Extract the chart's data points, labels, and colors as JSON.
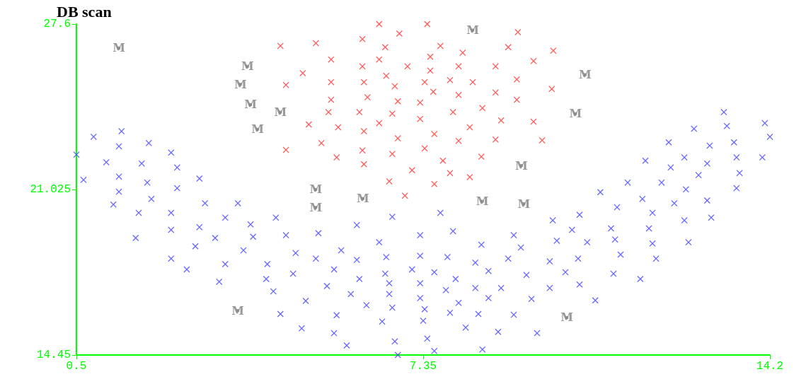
{
  "chart_data": {
    "type": "scatter",
    "title": "DB scan",
    "xlim": [
      0.5,
      14.2
    ],
    "xticks": [
      0.5,
      7.35,
      14.2
    ],
    "ylim": [
      14.45,
      27.6
    ],
    "yticks": [
      14.45,
      21.025,
      27.6
    ],
    "grid": false,
    "series": [
      {
        "color": "#4040ff",
        "marker": "cross",
        "x": [
          0.5,
          0.64,
          0.84,
          1.39,
          1.34,
          1.93,
          2.37,
          1.09,
          1.79,
          2.49,
          2.93,
          1.34,
          1.9,
          2.49,
          1.34,
          1.23,
          1.98,
          1.73,
          2.37,
          1.67,
          2.37,
          3.04,
          3.69,
          3.44,
          2.93,
          3.94,
          3.24,
          3.99,
          2.85,
          3.8,
          2.37,
          2.68,
          3.44,
          3.32,
          4.44,
          4.64,
          5.28,
          4.83,
          5.23,
          4.27,
          4.25,
          4.78,
          4.39,
          5.03,
          4.53,
          4.95,
          6.04,
          5.73,
          5.59,
          6.04,
          6.09,
          5.45,
          5.92,
          6.23,
          5.64,
          5.59,
          5.84,
          6.74,
          6.48,
          6.62,
          6.6,
          6.68,
          6.68,
          6.74,
          6.54,
          6.79,
          6.85,
          7.69,
          7.29,
          7.94,
          7.29,
          7.13,
          7.83,
          7.57,
          7.29,
          7.99,
          7.8,
          7.29,
          7.38,
          8.05,
          7.88,
          7.35,
          7.43,
          7.57,
          8.19,
          8.5,
          8.38,
          8.64,
          8.38,
          8.89,
          8.64,
          8.44,
          8.83,
          8.52,
          9.14,
          9.28,
          9.03,
          9.39,
          9.14,
          9.49,
          9.6,
          9.91,
          10.44,
          10.29,
          9.99,
          10.59,
          9.85,
          10.41,
          10.16,
          9.85,
          10.44,
          10.75,
          10.85,
          11.18,
          11.06,
          11.14,
          11.25,
          11.11,
          11.64,
          11.68,
          11.88,
          11.81,
          11.88,
          11.95,
          12.31,
          12.96,
          12.51,
          13.04,
          12.59,
          11.39,
          12.06,
          12.54,
          13.54,
          11.74,
          12.24,
          12.51,
          12.96,
          13.54,
          14.05,
          12.79,
          13.6,
          12.2,
          13.01,
          13.49,
          12.7,
          13.35,
          13.29,
          14.1,
          14.2
        ],
        "values": [
          22.41,
          21.41,
          23.12,
          23.34,
          22.74,
          22.87,
          22.49,
          22.11,
          22.06,
          21.9,
          21.46,
          21.54,
          21.3,
          21.08,
          20.94,
          20.43,
          20.65,
          20.1,
          20.1,
          19.1,
          19.42,
          20.48,
          20.48,
          19.91,
          19.53,
          19.64,
          19.1,
          19.15,
          18.77,
          18.61,
          18.28,
          17.85,
          18.06,
          17.36,
          19.91,
          19.21,
          19.29,
          18.5,
          18.28,
          18.06,
          17.47,
          17.68,
          16.98,
          16.6,
          16.08,
          15.51,
          19.61,
          18.61,
          17.85,
          18.23,
          17.47,
          17.19,
          16.87,
          16.43,
          16.03,
          15.32,
          14.83,
          19.94,
          18.93,
          18.34,
          17.68,
          17.3,
          16.87,
          16.33,
          15.78,
          14.99,
          14.45,
          20.1,
          19.21,
          19.37,
          18.39,
          17.85,
          18.34,
          17.74,
          17.3,
          17.47,
          17.03,
          16.71,
          16.27,
          16.52,
          16.13,
          15.81,
          15.1,
          14.61,
          15.54,
          18.83,
          18.12,
          17.79,
          17.11,
          17.11,
          16.71,
          16.08,
          15.37,
          14.67,
          19.21,
          18.72,
          18.28,
          17.63,
          16.05,
          16.68,
          15.32,
          19.8,
          20.02,
          19.42,
          18.99,
          18.93,
          18.17,
          18.28,
          17.74,
          17.11,
          17.25,
          16.62,
          20.92,
          20.32,
          19.48,
          19.04,
          18.44,
          17.68,
          17.47,
          20.65,
          20.1,
          19.48,
          18.88,
          18.28,
          20.48,
          20.59,
          19.8,
          19.91,
          18.93,
          21.3,
          21.3,
          21.03,
          21.08,
          22.17,
          21.9,
          22.3,
          22.06,
          22.3,
          22.3,
          21.6,
          21.68,
          22.9,
          22.77,
          22.9,
          23.44,
          23.55,
          24.1,
          23.66,
          23.12
        ]
      },
      {
        "color": "#ff3030",
        "marker": "cross",
        "x": [
          6.48,
          7.43,
          6.88,
          9.22,
          4.53,
          5.23,
          6.15,
          6.6,
          7.69,
          8.13,
          9.03,
          5.53,
          6.48,
          7.49,
          6.15,
          7.04,
          7.49,
          8.05,
          8.78,
          4.97,
          6.62,
          4.64,
          5.53,
          6.18,
          6.79,
          7.38,
          7.88,
          8.33,
          9.2,
          7.55,
          8.05,
          8.78,
          9.2,
          5.53,
          6.25,
          6.85,
          7.29,
          5.48,
          6.09,
          6.74,
          7.29,
          7.94,
          8.52,
          8.89,
          5.09,
          5.67,
          6.48,
          6.18,
          6.85,
          7.57,
          8.05,
          8.27,
          8.78,
          4.64,
          5.34,
          5.64,
          6.15,
          6.18,
          6.74,
          7.38,
          7.74,
          8.5,
          7.13,
          7.88,
          8.27,
          6.68,
          7.57,
          6.99,
          9.92,
          9.53,
          9.89,
          9.53,
          9.7
        ],
        "values": [
          27.6,
          27.6,
          27.22,
          27.28,
          26.73,
          26.84,
          27.0,
          26.68,
          26.73,
          26.46,
          26.68,
          26.19,
          26.19,
          26.3,
          25.92,
          25.92,
          25.75,
          25.92,
          25.92,
          25.65,
          25.54,
          25.18,
          25.29,
          25.29,
          25.13,
          25.29,
          25.37,
          25.29,
          25.4,
          24.91,
          24.78,
          24.88,
          24.59,
          24.59,
          24.69,
          24.53,
          24.48,
          24.1,
          24.1,
          24.04,
          23.83,
          24.1,
          24.26,
          23.77,
          23.61,
          23.5,
          23.66,
          23.34,
          23.06,
          23.23,
          22.96,
          23.5,
          23.01,
          22.6,
          22.87,
          22.3,
          22.58,
          22.03,
          22.44,
          22.66,
          22.17,
          22.33,
          21.79,
          21.68,
          21.52,
          21.35,
          21.24,
          20.78,
          26.54,
          26.13,
          25.02,
          23.72,
          22.98
        ]
      },
      {
        "color": "#808080",
        "marker": "square",
        "x": [
          1.34,
          3.88,
          3.74,
          3.94,
          4.53,
          4.08,
          3.69,
          5.23,
          5.23,
          6.16,
          8.33,
          10.55,
          10.36,
          9.29,
          8.52,
          9.34,
          10.19
        ],
        "values": [
          26.65,
          25.92,
          25.21,
          24.4,
          24.1,
          23.42,
          16.22,
          21.03,
          20.32,
          20.67,
          27.36,
          25.59,
          24.04,
          21.98,
          20.56,
          20.46,
          15.94
        ],
        "value_labels": [
          "M",
          "M",
          "M",
          "M",
          "M",
          "M",
          "M",
          "M",
          "M",
          "M",
          "M",
          "M",
          "M",
          "M",
          "M",
          "M",
          "M"
        ]
      }
    ]
  }
}
